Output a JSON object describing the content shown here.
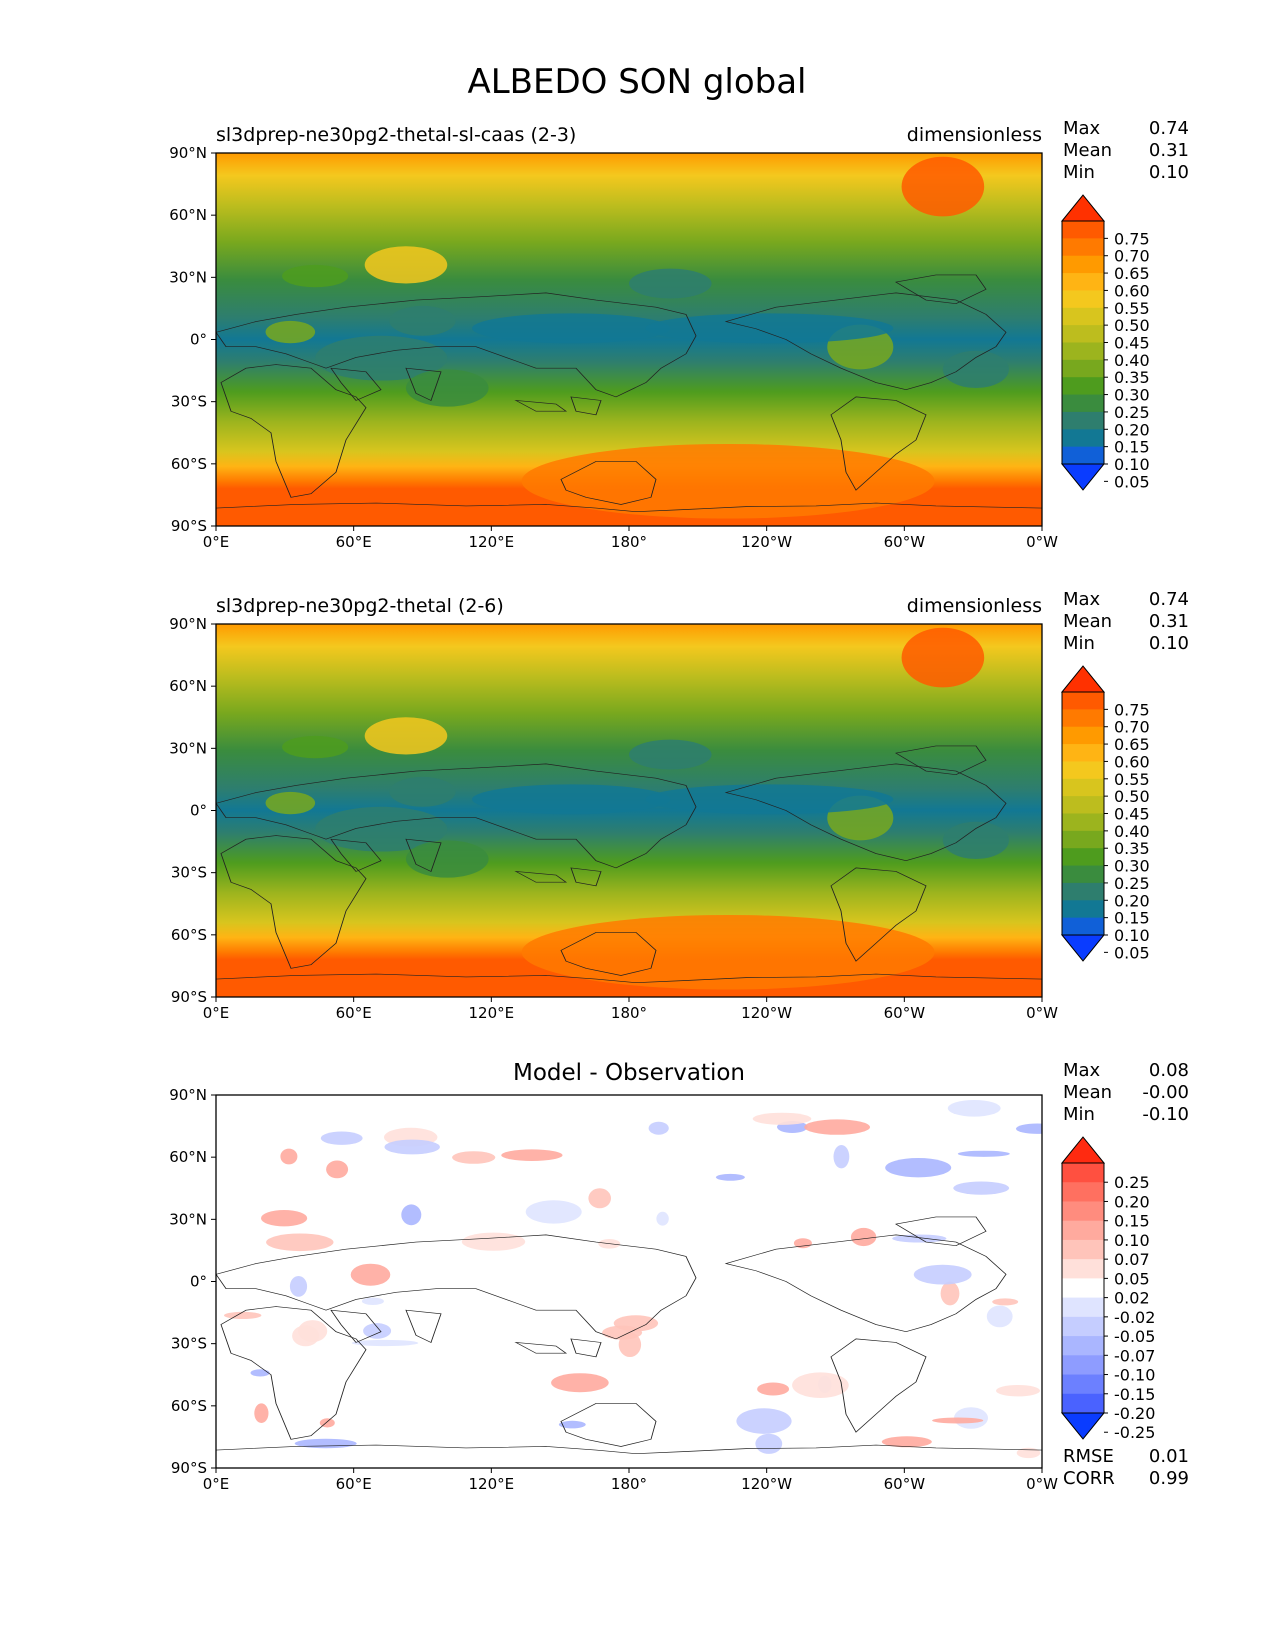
{
  "figure": {
    "title": "ALBEDO SON global"
  },
  "chart_data": [
    {
      "type": "heatmap",
      "title": "sl3dprep-ne30pg2-thetal-sl-caas (2-3)",
      "units": "dimensionless",
      "xlabel": "",
      "ylabel": "",
      "x_tick_labels": [
        "0°E",
        "60°E",
        "120°E",
        "180°",
        "120°W",
        "60°W",
        "0°W"
      ],
      "y_tick_labels": [
        "90°N",
        "60°N",
        "30°N",
        "0°",
        "30°S",
        "60°S",
        "90°S"
      ],
      "xlim": [
        0,
        360
      ],
      "ylim": [
        -90,
        90
      ],
      "stats": {
        "max_label": "Max",
        "max": "0.74",
        "mean_label": "Mean",
        "mean": "0.31",
        "min_label": "Min",
        "min": "0.10"
      },
      "colorbar": {
        "levels": [
          "0.75",
          "0.70",
          "0.65",
          "0.60",
          "0.55",
          "0.50",
          "0.45",
          "0.40",
          "0.35",
          "0.30",
          "0.25",
          "0.20",
          "0.15",
          "0.10",
          "0.05"
        ],
        "colors": [
          "#ff3100",
          "#ff5a00",
          "#ff7a00",
          "#ff9a00",
          "#ffb414",
          "#f4c81e",
          "#d8c51e",
          "#bdbd1e",
          "#9cb41e",
          "#78a81e",
          "#4e9c1e",
          "#3a8c3e",
          "#2e7e6e",
          "#127894",
          "#1060d8",
          "#0a3cff"
        ]
      },
      "zonal_profile": {
        "lat": [
          -90,
          -80,
          -70,
          -65,
          -60,
          -55,
          -50,
          -45,
          -40,
          -30,
          -20,
          -10,
          0,
          10,
          20,
          30,
          40,
          50,
          60,
          70,
          80,
          90
        ],
        "value": [
          0.66,
          0.66,
          0.64,
          0.55,
          0.44,
          0.42,
          0.4,
          0.36,
          0.3,
          0.22,
          0.19,
          0.17,
          0.16,
          0.19,
          0.22,
          0.26,
          0.33,
          0.4,
          0.46,
          0.55,
          0.6,
          0.62
        ]
      }
    },
    {
      "type": "heatmap",
      "title": "sl3dprep-ne30pg2-thetal (2-6)",
      "units": "dimensionless",
      "xlabel": "",
      "ylabel": "",
      "x_tick_labels": [
        "0°E",
        "60°E",
        "120°E",
        "180°",
        "120°W",
        "60°W",
        "0°W"
      ],
      "y_tick_labels": [
        "90°N",
        "60°N",
        "30°N",
        "0°",
        "30°S",
        "60°S",
        "90°S"
      ],
      "xlim": [
        0,
        360
      ],
      "ylim": [
        -90,
        90
      ],
      "stats": {
        "max_label": "Max",
        "max": "0.74",
        "mean_label": "Mean",
        "mean": "0.31",
        "min_label": "Min",
        "min": "0.10"
      },
      "colorbar": {
        "levels": [
          "0.75",
          "0.70",
          "0.65",
          "0.60",
          "0.55",
          "0.50",
          "0.45",
          "0.40",
          "0.35",
          "0.30",
          "0.25",
          "0.20",
          "0.15",
          "0.10",
          "0.05"
        ],
        "colors": [
          "#ff3100",
          "#ff5a00",
          "#ff7a00",
          "#ff9a00",
          "#ffb414",
          "#f4c81e",
          "#d8c51e",
          "#bdbd1e",
          "#9cb41e",
          "#78a81e",
          "#4e9c1e",
          "#3a8c3e",
          "#2e7e6e",
          "#127894",
          "#1060d8",
          "#0a3cff"
        ]
      },
      "zonal_profile": {
        "lat": [
          -90,
          -80,
          -70,
          -65,
          -60,
          -55,
          -50,
          -45,
          -40,
          -30,
          -20,
          -10,
          0,
          10,
          20,
          30,
          40,
          50,
          60,
          70,
          80,
          90
        ],
        "value": [
          0.66,
          0.66,
          0.64,
          0.55,
          0.44,
          0.42,
          0.4,
          0.36,
          0.3,
          0.22,
          0.19,
          0.17,
          0.16,
          0.19,
          0.22,
          0.26,
          0.33,
          0.4,
          0.46,
          0.55,
          0.6,
          0.62
        ]
      }
    },
    {
      "type": "heatmap",
      "title": "Model - Observation",
      "xlabel": "",
      "ylabel": "",
      "x_tick_labels": [
        "0°E",
        "60°E",
        "120°E",
        "180°",
        "120°W",
        "60°W",
        "0°W"
      ],
      "y_tick_labels": [
        "90°N",
        "60°N",
        "30°N",
        "0°",
        "30°S",
        "60°S",
        "90°S"
      ],
      "xlim": [
        0,
        360
      ],
      "ylim": [
        -90,
        90
      ],
      "stats": {
        "max_label": "Max",
        "max": "0.08",
        "mean_label": "Mean",
        "mean": "-0.00",
        "min_label": "Min",
        "min": "-0.10"
      },
      "metrics": {
        "rmse_label": "RMSE",
        "rmse": "0.01",
        "corr_label": "CORR",
        "corr": "0.99"
      },
      "colorbar": {
        "levels": [
          "0.25",
          "0.20",
          "0.15",
          "0.10",
          "0.07",
          "0.05",
          "0.02",
          "-0.02",
          "-0.05",
          "-0.07",
          "-0.10",
          "-0.15",
          "-0.20",
          "-0.25"
        ],
        "colors": [
          "#ff2a10",
          "#ff5040",
          "#ff7060",
          "#ff8c7e",
          "#ffaa9e",
          "#ffc4ba",
          "#ffe0da",
          "#ffffff",
          "#dfe4ff",
          "#c5cdff",
          "#aab6ff",
          "#8e9cff",
          "#6c80ff",
          "#4a62ff",
          "#0a3cff"
        ]
      }
    }
  ]
}
